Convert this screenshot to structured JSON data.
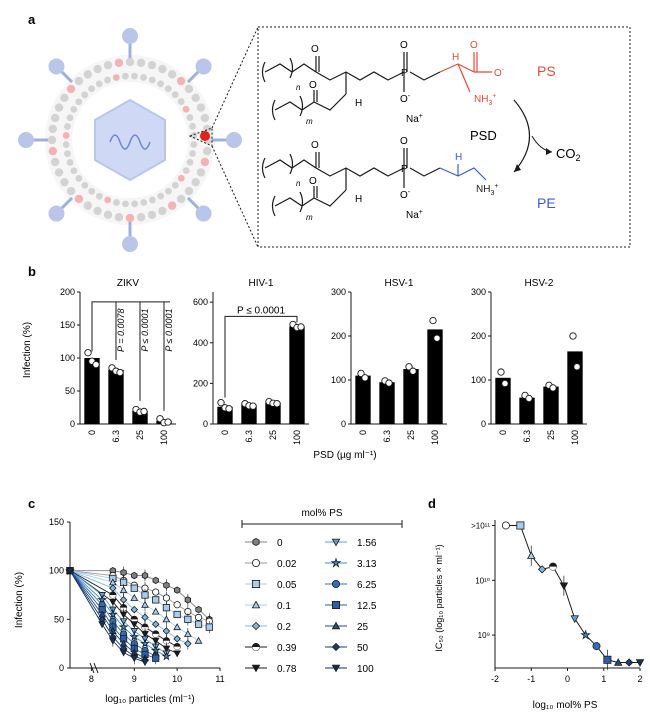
{
  "panel_a": {
    "letter": "a",
    "top_lipid": {
      "label": "PS",
      "charge_oxygen": "O",
      "minus": "-",
      "amine": "NH",
      "amine_sub": "3",
      "amine_sup": "+",
      "h": "H",
      "o": "O",
      "p": "P",
      "counter_ion": "Na",
      "counter_sup": "+",
      "n": "n",
      "m": "m"
    },
    "bottom_lipid": {
      "label": "PE",
      "amine": "NH",
      "amine_sub": "3",
      "amine_sup": "+",
      "h": "H",
      "o": "O",
      "p": "P",
      "counter_ion": "Na",
      "counter_sup": "+",
      "n": "n",
      "m": "m"
    },
    "enzyme": "PSD",
    "product": "CO",
    "product_sub": "2"
  },
  "colors": {
    "ps": "#e64b35",
    "pe": "#3c5adc",
    "bar": "#000000",
    "virion": "#b9c6ea",
    "lipid_gray": "#d3d3d3",
    "lipid_pink": "#f5b2b2"
  },
  "panel_b": {
    "letter": "b",
    "shared_xlabel": "PSD (µg ml⁻¹)",
    "ylabel": "Infection (%)",
    "charts": [
      {
        "type": "bar",
        "title": "ZIKV",
        "categories": [
          "0",
          "6.3",
          "25",
          "100"
        ],
        "values": [
          100,
          82,
          20,
          5
        ],
        "points": [
          [
            108,
            95,
            90
          ],
          [
            85,
            80,
            78
          ],
          [
            22,
            18,
            19
          ],
          [
            8,
            2,
            3
          ]
        ],
        "ylim": [
          0,
          200
        ],
        "yticks": [
          "0",
          "50",
          "100",
          "150",
          "200"
        ],
        "pvalues": [
          "P = 0.0078",
          "P ≤ 0.0001",
          "P ≤ 0.0001"
        ]
      },
      {
        "type": "bar",
        "title": "HIV-1",
        "categories": [
          "0",
          "6.3",
          "25",
          "100"
        ],
        "values": [
          85,
          95,
          105,
          480
        ],
        "points": [
          [
            105,
            80,
            75
          ],
          [
            100,
            90,
            88
          ],
          [
            110,
            102,
            100
          ],
          [
            490,
            475,
            478
          ]
        ],
        "ylim": [
          0,
          650
        ],
        "yticks": [
          "0",
          "200",
          "400",
          "600"
        ],
        "pvalues": [
          "P ≤ 0.0001"
        ]
      },
      {
        "type": "bar",
        "title": "HSV-1",
        "categories": [
          "0",
          "6.3",
          "25",
          "100"
        ],
        "values": [
          110,
          95,
          125,
          215
        ],
        "points": [
          [
            115,
            105
          ],
          [
            98,
            93
          ],
          [
            130,
            120
          ],
          [
            235,
            195
          ]
        ],
        "ylim": [
          0,
          300
        ],
        "yticks": [
          "0",
          "100",
          "200",
          "300"
        ],
        "pvalues": []
      },
      {
        "type": "bar",
        "title": "HSV-2",
        "categories": [
          "0",
          "6.3",
          "25",
          "100"
        ],
        "values": [
          105,
          60,
          85,
          165
        ],
        "points": [
          [
            118,
            92
          ],
          [
            65,
            58
          ],
          [
            88,
            82
          ],
          [
            200,
            130
          ]
        ],
        "ylim": [
          0,
          300
        ],
        "yticks": [
          "0",
          "100",
          "200",
          "300"
        ],
        "pvalues": []
      }
    ]
  },
  "panel_c": {
    "letter": "c",
    "chart_data": {
      "type": "line",
      "xlabel": "log₁₀ particles (ml⁻¹)",
      "ylabel": "Infection (%)",
      "xticks": [
        "8",
        "9",
        "10",
        "11"
      ],
      "yticks": [
        "0",
        "50",
        "100",
        "150"
      ],
      "xlim": [
        7.5,
        11
      ],
      "ylim": [
        0,
        150
      ],
      "legend_title": "mol% PS",
      "series": [
        {
          "name": "0",
          "color": "#808080",
          "marker": "hex",
          "filled": true,
          "x": [
            7.5,
            8.5,
            8.75,
            9,
            9.25,
            9.5,
            9.75,
            10,
            10.25,
            10.5,
            10.75
          ],
          "y": [
            100,
            100,
            98,
            95,
            95,
            90,
            85,
            80,
            70,
            60,
            50
          ]
        },
        {
          "name": "0.02",
          "color": "#ffffff",
          "marker": "circle",
          "filled": false,
          "x": [
            7.5,
            8.5,
            8.75,
            9,
            9.25,
            9.5,
            9.75,
            10,
            10.25,
            10.5,
            10.75
          ],
          "y": [
            100,
            95,
            90,
            85,
            82,
            78,
            72,
            65,
            58,
            52,
            48
          ]
        },
        {
          "name": "0.05",
          "color": "#a6cdf0",
          "marker": "square",
          "filled": true,
          "x": [
            7.5,
            8.5,
            8.75,
            9,
            9.25,
            9.5,
            9.75,
            10,
            10.25,
            10.5,
            10.75
          ],
          "y": [
            100,
            92,
            88,
            82,
            75,
            70,
            62,
            55,
            50,
            45,
            42
          ]
        },
        {
          "name": "0.1",
          "color": "#a6cdf0",
          "marker": "triangle",
          "filled": true,
          "x": [
            7.5,
            8.5,
            8.75,
            9,
            9.25,
            9.5,
            9.75,
            10,
            10.25,
            10.5
          ],
          "y": [
            100,
            88,
            80,
            72,
            65,
            58,
            50,
            42,
            35,
            28
          ]
        },
        {
          "name": "0.2",
          "color": "#7fb8e6",
          "marker": "diamond",
          "filled": true,
          "x": [
            7.5,
            8.5,
            8.75,
            9,
            9.25,
            9.5,
            9.75,
            10,
            10.25
          ],
          "y": [
            100,
            82,
            70,
            60,
            52,
            45,
            38,
            30,
            25
          ]
        },
        {
          "name": "0.39",
          "color": "#1a1a1a",
          "marker": "halfcircle",
          "filled": true,
          "x": [
            7.5,
            8.5,
            8.75,
            9,
            9.25,
            9.5,
            9.75,
            10
          ],
          "y": [
            100,
            75,
            62,
            50,
            42,
            35,
            28,
            22
          ]
        },
        {
          "name": "0.78",
          "color": "#1a1a1a",
          "marker": "invtriangle",
          "filled": true,
          "x": [
            7.5,
            8.5,
            8.75,
            9,
            9.25,
            9.5,
            9.75,
            10
          ],
          "y": [
            100,
            68,
            55,
            45,
            35,
            28,
            20,
            15
          ]
        },
        {
          "name": "1.56",
          "color": "#5aa0e6",
          "marker": "invtriangle",
          "filled": true,
          "x": [
            7.5,
            8.25,
            8.5,
            8.75,
            9,
            9.25,
            9.5,
            9.75
          ],
          "y": [
            100,
            75,
            60,
            48,
            38,
            30,
            22,
            15
          ]
        },
        {
          "name": "3.13",
          "color": "#3a8fdf",
          "marker": "star",
          "filled": true,
          "x": [
            7.5,
            8.25,
            8.5,
            8.75,
            9,
            9.25,
            9.5,
            9.75
          ],
          "y": [
            100,
            70,
            55,
            42,
            32,
            25,
            18,
            12
          ]
        },
        {
          "name": "6.25",
          "color": "#2f6fb8",
          "marker": "circle",
          "filled": true,
          "x": [
            7.5,
            8.25,
            8.5,
            8.75,
            9,
            9.25,
            9.5
          ],
          "y": [
            100,
            65,
            48,
            35,
            25,
            18,
            12
          ]
        },
        {
          "name": "12.5",
          "color": "#2a5ea8",
          "marker": "square",
          "filled": true,
          "x": [
            7.5,
            8.25,
            8.5,
            8.75,
            9,
            9.25,
            9.5
          ],
          "y": [
            100,
            60,
            42,
            30,
            20,
            14,
            10
          ]
        },
        {
          "name": "25",
          "color": "#1f4a8a",
          "marker": "triangle",
          "filled": true,
          "x": [
            7.5,
            8.25,
            8.5,
            8.75,
            9,
            9.25
          ],
          "y": [
            100,
            55,
            38,
            25,
            16,
            10
          ]
        },
        {
          "name": "50",
          "color": "#1a3d75",
          "marker": "diamond",
          "filled": true,
          "x": [
            7.5,
            8.25,
            8.5,
            8.75,
            9,
            9.25
          ],
          "y": [
            100,
            50,
            32,
            20,
            12,
            8
          ]
        },
        {
          "name": "100",
          "color": "#16305e",
          "marker": "invtriangle",
          "filled": true,
          "x": [
            7.5,
            8.25,
            8.5,
            8.75,
            9,
            9.25
          ],
          "y": [
            100,
            45,
            28,
            16,
            10,
            6
          ]
        }
      ]
    }
  },
  "panel_d": {
    "letter": "d",
    "chart_data": {
      "type": "line",
      "xlabel": "log₁₀ mol% PS",
      "ylabel": "IC₅₀ (log₁₀ particles × ml⁻¹)",
      "xticks": [
        "-2",
        "-1",
        "0",
        "1",
        "2"
      ],
      "yticks": [
        "10⁹",
        "10¹⁰",
        ">10¹¹"
      ],
      "xlim": [
        -2,
        2
      ],
      "ylim": [
        8.4,
        11.1
      ],
      "x": [
        -1.7,
        -1.3,
        -1.0,
        -0.7,
        -0.4,
        -0.1,
        0.2,
        0.5,
        0.8,
        1.1,
        1.4,
        1.7,
        2.0
      ],
      "y": [
        11.0,
        11.0,
        10.45,
        10.2,
        10.25,
        9.9,
        9.3,
        9.0,
        8.8,
        8.55,
        8.5,
        8.5,
        8.5
      ],
      "colors": [
        "#ffffff",
        "#a6cdf0",
        "#a6cdf0",
        "#7fb8e6",
        "#1a1a1a",
        "#1a1a1a",
        "#5aa0e6",
        "#3a8fdf",
        "#2f6fb8",
        "#2a5ea8",
        "#1f4a8a",
        "#1a3d75",
        "#16305e"
      ],
      "markers": [
        "circle",
        "square",
        "triangle",
        "diamond",
        "halfcircle",
        "invtriangle",
        "invtriangle",
        "star",
        "circle",
        "square",
        "triangle",
        "diamond",
        "invtriangle"
      ]
    }
  }
}
